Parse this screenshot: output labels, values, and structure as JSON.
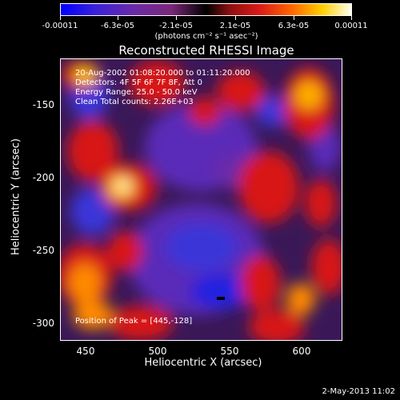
{
  "colorbar": {
    "tick_labels": [
      "-0.00011",
      "-6.3e-05",
      "-2.1e-05",
      "2.1e-05",
      "6.3e-05",
      "0.00011"
    ],
    "units": "(photons cm⁻² s⁻¹ asec⁻²)"
  },
  "plot": {
    "title": "Reconstructed RHESSI Image",
    "annotations": {
      "time": "20-Aug-2002 01:08:20.000 to 01:11:20.000",
      "detectors": "Detectors: 4F 5F 6F 7F 8F, Att 0",
      "energy": "Energy Range: 25.0 - 50.0 keV",
      "clean": "Clean     Total counts: 2.26E+03",
      "peak": "Position of Peak = [445,-128]"
    },
    "y_ticks": [
      "-150",
      "-200",
      "-250",
      "-300"
    ],
    "x_ticks": [
      "450",
      "500",
      "550",
      "600"
    ],
    "ylabel": "Heliocentric Y (arcsec)",
    "xlabel": "Heliocentric X (arcsec)",
    "colors": {
      "negative_strong": "#2020e0",
      "negative": "#5a2ab8",
      "neutral": "#3a1858",
      "positive": "#d81818",
      "positive_strong": "#ff8a00",
      "peak": "#fff0a0"
    }
  },
  "footer": {
    "timestamp": "2-May-2013 11:02"
  }
}
